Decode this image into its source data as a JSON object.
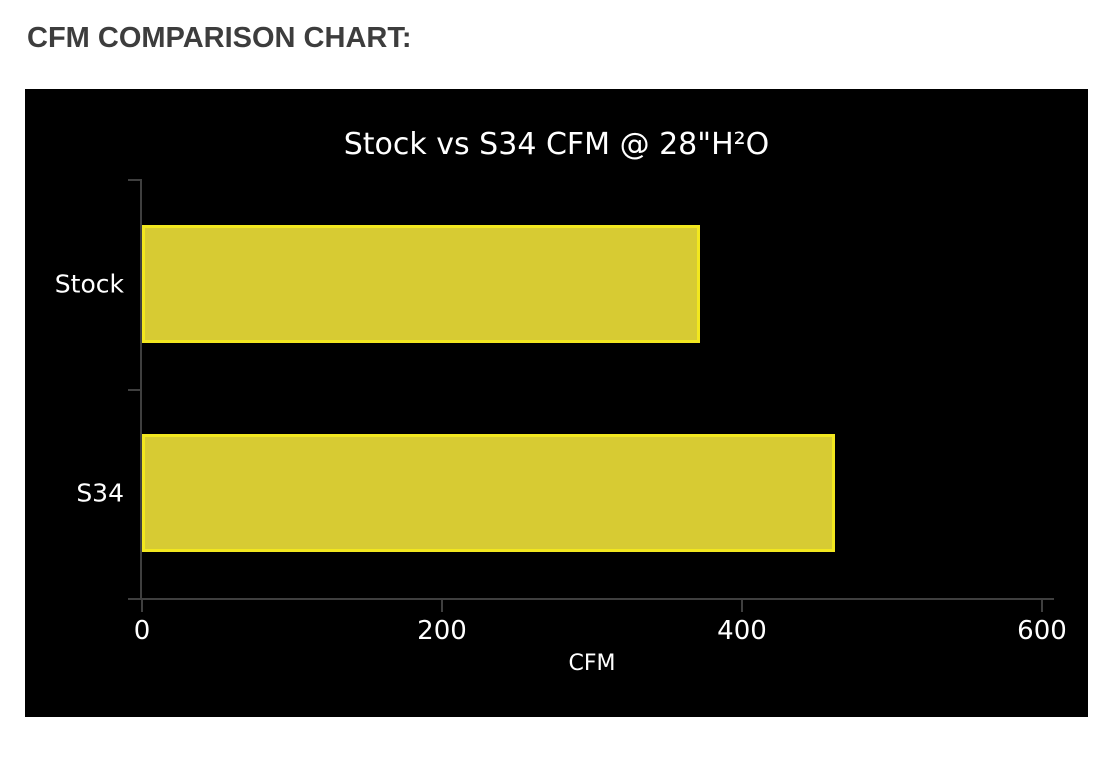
{
  "page": {
    "heading": "CFM COMPARISON CHART:"
  },
  "colors": {
    "page_bg": "#ffffff",
    "heading_text": "#3d3d3d",
    "panel_bg": "#000000",
    "chart_text": "#ffffff",
    "axis": "#3f3f3f",
    "bar_fill": "#d7cb33",
    "bar_border": "#f2e71f"
  },
  "chart_data": {
    "type": "bar",
    "orientation": "horizontal",
    "title": "Stock vs S34 CFM @ 28\"H²O",
    "categories": [
      "Stock",
      "S34"
    ],
    "values": [
      372,
      462
    ],
    "xlabel": "CFM",
    "ylabel": "",
    "xlim": [
      0,
      600
    ],
    "xticks": [
      0,
      200,
      400,
      600
    ],
    "grid": false,
    "legend": false
  }
}
